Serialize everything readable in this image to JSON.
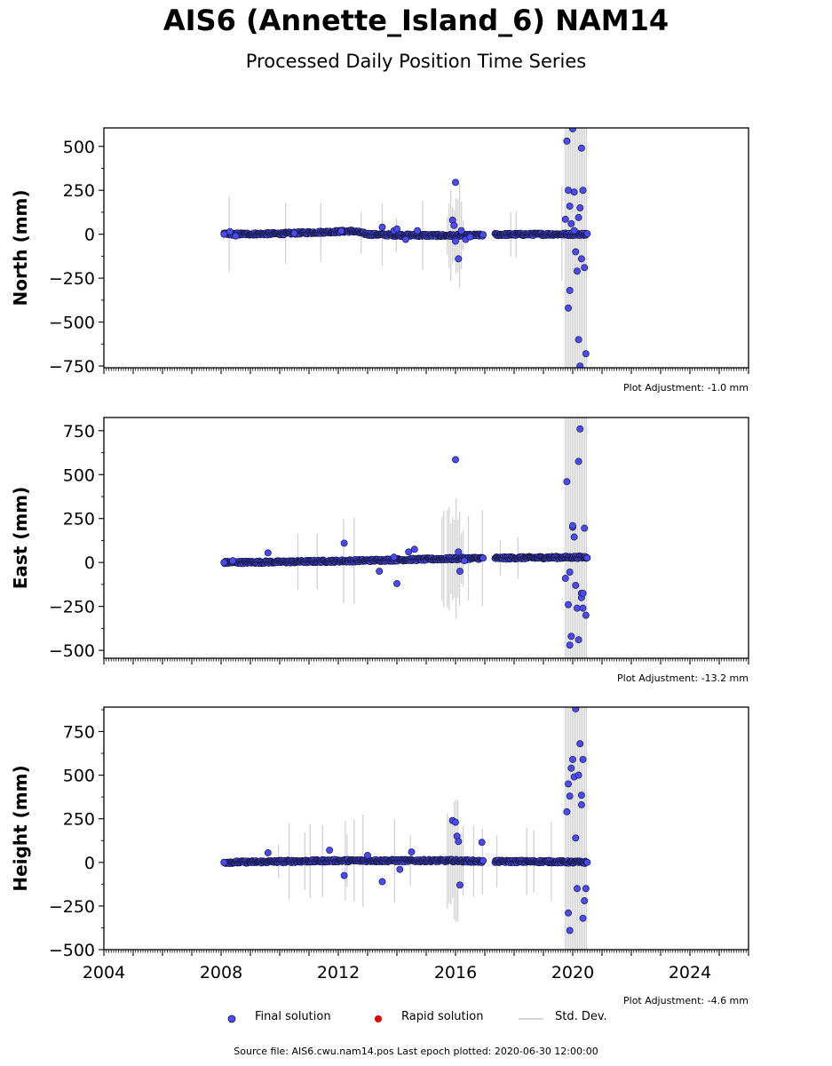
{
  "title": "AIS6 (Annette_Island_6) NAM14",
  "subtitle": "Processed Daily Position Time Series",
  "legend": {
    "final": "Final solution",
    "rapid": "Rapid solution",
    "std": "Std. Dev."
  },
  "source": "Source file: AIS6.cwu.nam14.pos  Last epoch plotted: 2020-06-30 12:00:00",
  "colors": {
    "final": "#4b4bf5",
    "rapid": "#e00000",
    "std": "#c8c8c8"
  },
  "chart_data": [
    {
      "type": "scatter",
      "ylabel": "North (mm)",
      "ylim": [
        -760,
        605
      ],
      "yticks": [
        500,
        250,
        0,
        -250,
        -500,
        -750
      ],
      "ytick_labels": [
        "500",
        "250",
        "0",
        "−250",
        "−500",
        "−750"
      ],
      "xlim": [
        2004,
        2026
      ],
      "adjustment": "Plot Adjustment: -1.0 mm",
      "trend": [
        [
          2008.1,
          0
        ],
        [
          2010,
          3
        ],
        [
          2012,
          15
        ],
        [
          2012.5,
          18
        ],
        [
          2013,
          0
        ],
        [
          2014,
          -5
        ],
        [
          2016,
          -8
        ],
        [
          2017,
          -5
        ],
        [
          2017.4,
          -2
        ],
        [
          2019,
          0
        ],
        [
          2020.5,
          0
        ]
      ],
      "series": [
        {
          "name": "Final solution",
          "x": [
            2008.1,
            2008.3,
            2008.5,
            2010.5,
            2012.1,
            2013.5,
            2013.9,
            2014.0,
            2014.3,
            2014.7,
            2015.9,
            2016.0,
            2016.1,
            2016.0,
            2015.95,
            2016.2,
            2016.35,
            2016.5,
            2019.8,
            2019.85,
            2019.9,
            2019.95,
            2020.0,
            2020.05,
            2020.1,
            2020.15,
            2020.2,
            2020.25,
            2020.3,
            2020.35,
            2020.4,
            2020.45,
            2019.75,
            2019.9,
            2019.85,
            2020.2,
            2020.3,
            2020.25,
            2020.05
          ],
          "y": [
            0,
            15,
            -10,
            5,
            18,
            40,
            20,
            30,
            -30,
            20,
            80,
            295,
            -140,
            -40,
            50,
            20,
            -30,
            -15,
            530,
            250,
            160,
            60,
            600,
            240,
            -100,
            -210,
            95,
            150,
            -140,
            250,
            -190,
            -680,
            85,
            -320,
            -420,
            -600,
            490,
            -750,
            20
          ]
        }
      ]
    },
    {
      "type": "scatter",
      "ylabel": "East (mm)",
      "ylim": [
        -545,
        825
      ],
      "yticks": [
        750,
        500,
        250,
        0,
        -250,
        -500
      ],
      "ytick_labels": [
        "750",
        "500",
        "250",
        "0",
        "−250",
        "−500"
      ],
      "xlim": [
        2004,
        2026
      ],
      "adjustment": "Plot Adjustment: -13.2 mm",
      "trend": [
        [
          2008.1,
          0
        ],
        [
          2010,
          3
        ],
        [
          2012,
          8
        ],
        [
          2014,
          15
        ],
        [
          2016,
          22
        ],
        [
          2017,
          25
        ],
        [
          2017.4,
          25
        ],
        [
          2019,
          28
        ],
        [
          2020.5,
          30
        ]
      ],
      "series": [
        {
          "name": "Final solution",
          "x": [
            2008.1,
            2008.4,
            2009.6,
            2012.2,
            2013.4,
            2013.9,
            2014.0,
            2014.4,
            2014.6,
            2016.0,
            2016.1,
            2016.15,
            2016.3,
            2019.8,
            2019.85,
            2019.9,
            2019.95,
            2020.0,
            2020.05,
            2020.1,
            2020.15,
            2020.2,
            2020.25,
            2020.3,
            2020.35,
            2020.4,
            2020.45,
            2019.75,
            2019.9,
            2020.0,
            2020.2,
            2020.3,
            2020.35
          ],
          "y": [
            0,
            10,
            55,
            110,
            -50,
            30,
            -120,
            60,
            75,
            585,
            60,
            -50,
            10,
            460,
            -240,
            -470,
            -420,
            200,
            145,
            -130,
            -260,
            575,
            760,
            -175,
            -260,
            195,
            -300,
            -90,
            -55,
            210,
            -440,
            -200,
            -175
          ]
        }
      ]
    },
    {
      "type": "scatter",
      "ylabel": "Height (mm)",
      "ylim": [
        -500,
        890
      ],
      "yticks": [
        750,
        500,
        250,
        0,
        -250,
        -500
      ],
      "ytick_labels": [
        "750",
        "500",
        "250",
        "0",
        "−250",
        "−500"
      ],
      "xlim": [
        2004,
        2026
      ],
      "xticks": [
        2004,
        2008,
        2012,
        2016,
        2020,
        2024
      ],
      "adjustment": "Plot Adjustment: -4.6 mm",
      "trend": [
        [
          2008.1,
          0
        ],
        [
          2010,
          5
        ],
        [
          2012,
          10
        ],
        [
          2014,
          10
        ],
        [
          2016,
          10
        ],
        [
          2017,
          5
        ],
        [
          2017.4,
          5
        ],
        [
          2019,
          5
        ],
        [
          2020.5,
          0
        ]
      ],
      "series": [
        {
          "name": "Final solution",
          "x": [
            2008.1,
            2009.6,
            2011.7,
            2012.2,
            2013.0,
            2013.5,
            2014.1,
            2014.5,
            2015.9,
            2016.0,
            2016.05,
            2016.1,
            2016.15,
            2016.9,
            2019.8,
            2019.85,
            2019.9,
            2019.95,
            2020.0,
            2020.05,
            2020.1,
            2020.15,
            2020.2,
            2020.25,
            2020.3,
            2020.35,
            2020.4,
            2020.45,
            2019.9,
            2019.85,
            2020.1,
            2020.3,
            2020.35
          ],
          "y": [
            0,
            55,
            70,
            -75,
            40,
            -110,
            -40,
            60,
            240,
            230,
            150,
            120,
            -130,
            115,
            290,
            450,
            380,
            540,
            590,
            490,
            140,
            -150,
            500,
            680,
            385,
            590,
            -220,
            -150,
            -390,
            -290,
            880,
            330,
            -320
          ]
        }
      ]
    }
  ]
}
